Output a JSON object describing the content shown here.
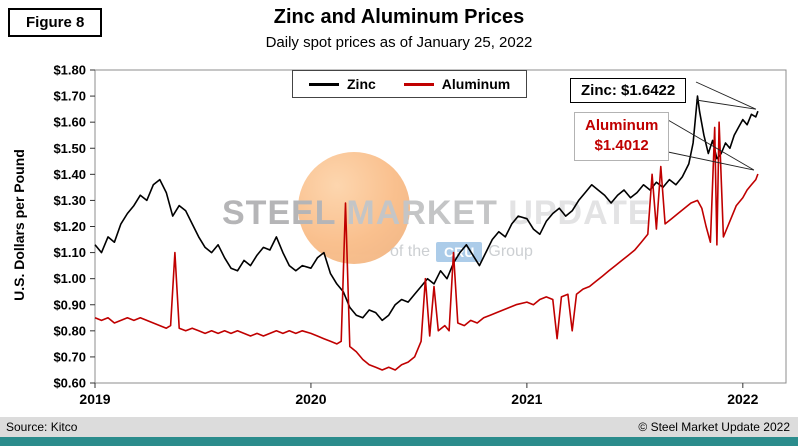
{
  "figure_label": "Figure 8",
  "title": "Zinc and Aluminum Prices",
  "subtitle": "Daily spot prices as of January 25, 2022",
  "y_axis_label": "U.S. Dollars per Pound",
  "annotations": {
    "zinc": "Zinc: $1.6422",
    "aluminum_line1": "Aluminum",
    "aluminum_line2": "$1.4012"
  },
  "watermark": {
    "word1": "STEEL",
    "word2": "MARKET",
    "word3": "UPDATE",
    "line2_prefix": "of the",
    "line2_badge": "CRU",
    "line2_suffix": "Group"
  },
  "footer": {
    "source": "Source: Kitco",
    "copyright": "© Steel Market Update 2022"
  },
  "colors": {
    "zinc_line": "#000000",
    "aluminum_line": "#c00000",
    "teal_bar": "#2b8c8c",
    "watermark_orange": "#f5821f",
    "cru_blue": "#5b9bd5",
    "footer_strip": "#dcdcdc"
  },
  "chart_data": {
    "type": "line",
    "title": "Zinc and Aluminum Prices",
    "subtitle": "Daily spot prices as of January 25, 2022",
    "xlabel": "",
    "ylabel": "U.S. Dollars per Pound",
    "xlim": [
      2019.0,
      2022.2
    ],
    "ylim": [
      0.6,
      1.8
    ],
    "grid": false,
    "legend_position": "top-center",
    "x_ticks": [
      {
        "label": "2019",
        "value": 2019
      },
      {
        "label": "2020",
        "value": 2020
      },
      {
        "label": "2021",
        "value": 2021
      },
      {
        "label": "2022",
        "value": 2022
      }
    ],
    "y_ticks": [
      {
        "label": "$0.60",
        "value": 0.6
      },
      {
        "label": "$0.70",
        "value": 0.7
      },
      {
        "label": "$0.80",
        "value": 0.8
      },
      {
        "label": "$0.90",
        "value": 0.9
      },
      {
        "label": "$1.00",
        "value": 1.0
      },
      {
        "label": "$1.10",
        "value": 1.1
      },
      {
        "label": "$1.20",
        "value": 1.2
      },
      {
        "label": "$1.30",
        "value": 1.3
      },
      {
        "label": "$1.40",
        "value": 1.4
      },
      {
        "label": "$1.50",
        "value": 1.5
      },
      {
        "label": "$1.60",
        "value": 1.6
      },
      {
        "label": "$1.70",
        "value": 1.7
      },
      {
        "label": "$1.80",
        "value": 1.8
      }
    ],
    "series": [
      {
        "name": "Zinc",
        "color": "#000000",
        "final_value": 1.6422,
        "points": [
          [
            2019.0,
            1.13
          ],
          [
            2019.03,
            1.1
          ],
          [
            2019.06,
            1.16
          ],
          [
            2019.09,
            1.14
          ],
          [
            2019.12,
            1.21
          ],
          [
            2019.15,
            1.25
          ],
          [
            2019.18,
            1.28
          ],
          [
            2019.21,
            1.32
          ],
          [
            2019.24,
            1.3
          ],
          [
            2019.27,
            1.36
          ],
          [
            2019.3,
            1.38
          ],
          [
            2019.33,
            1.33
          ],
          [
            2019.36,
            1.24
          ],
          [
            2019.39,
            1.28
          ],
          [
            2019.42,
            1.26
          ],
          [
            2019.45,
            1.21
          ],
          [
            2019.48,
            1.16
          ],
          [
            2019.51,
            1.12
          ],
          [
            2019.54,
            1.1
          ],
          [
            2019.57,
            1.13
          ],
          [
            2019.6,
            1.08
          ],
          [
            2019.63,
            1.04
          ],
          [
            2019.66,
            1.03
          ],
          [
            2019.69,
            1.07
          ],
          [
            2019.72,
            1.05
          ],
          [
            2019.75,
            1.09
          ],
          [
            2019.78,
            1.12
          ],
          [
            2019.81,
            1.11
          ],
          [
            2019.84,
            1.16
          ],
          [
            2019.87,
            1.1
          ],
          [
            2019.9,
            1.05
          ],
          [
            2019.93,
            1.03
          ],
          [
            2019.96,
            1.05
          ],
          [
            2020.0,
            1.04
          ],
          [
            2020.03,
            1.08
          ],
          [
            2020.06,
            1.1
          ],
          [
            2020.09,
            1.02
          ],
          [
            2020.12,
            0.98
          ],
          [
            2020.15,
            0.95
          ],
          [
            2020.18,
            0.89
          ],
          [
            2020.21,
            0.86
          ],
          [
            2020.24,
            0.85
          ],
          [
            2020.27,
            0.88
          ],
          [
            2020.3,
            0.87
          ],
          [
            2020.33,
            0.84
          ],
          [
            2020.36,
            0.86
          ],
          [
            2020.39,
            0.9
          ],
          [
            2020.42,
            0.92
          ],
          [
            2020.45,
            0.91
          ],
          [
            2020.48,
            0.94
          ],
          [
            2020.51,
            0.97
          ],
          [
            2020.54,
            1.0
          ],
          [
            2020.57,
            0.98
          ],
          [
            2020.6,
            1.03
          ],
          [
            2020.63,
            1.0
          ],
          [
            2020.66,
            1.06
          ],
          [
            2020.69,
            1.1
          ],
          [
            2020.72,
            1.13
          ],
          [
            2020.75,
            1.09
          ],
          [
            2020.78,
            1.05
          ],
          [
            2020.81,
            1.1
          ],
          [
            2020.84,
            1.15
          ],
          [
            2020.87,
            1.18
          ],
          [
            2020.9,
            1.16
          ],
          [
            2020.93,
            1.21
          ],
          [
            2020.96,
            1.24
          ],
          [
            2021.0,
            1.23
          ],
          [
            2021.03,
            1.19
          ],
          [
            2021.06,
            1.17
          ],
          [
            2021.09,
            1.22
          ],
          [
            2021.12,
            1.25
          ],
          [
            2021.15,
            1.27
          ],
          [
            2021.18,
            1.24
          ],
          [
            2021.21,
            1.26
          ],
          [
            2021.24,
            1.3
          ],
          [
            2021.27,
            1.33
          ],
          [
            2021.3,
            1.36
          ],
          [
            2021.33,
            1.34
          ],
          [
            2021.36,
            1.32
          ],
          [
            2021.39,
            1.29
          ],
          [
            2021.42,
            1.32
          ],
          [
            2021.45,
            1.34
          ],
          [
            2021.48,
            1.31
          ],
          [
            2021.51,
            1.33
          ],
          [
            2021.54,
            1.36
          ],
          [
            2021.57,
            1.34
          ],
          [
            2021.6,
            1.37
          ],
          [
            2021.63,
            1.35
          ],
          [
            2021.66,
            1.38
          ],
          [
            2021.69,
            1.36
          ],
          [
            2021.72,
            1.39
          ],
          [
            2021.75,
            1.44
          ],
          [
            2021.77,
            1.52
          ],
          [
            2021.79,
            1.7
          ],
          [
            2021.8,
            1.64
          ],
          [
            2021.82,
            1.55
          ],
          [
            2021.84,
            1.48
          ],
          [
            2021.86,
            1.53
          ],
          [
            2021.88,
            1.46
          ],
          [
            2021.9,
            1.48
          ],
          [
            2021.92,
            1.52
          ],
          [
            2021.94,
            1.5
          ],
          [
            2021.96,
            1.55
          ],
          [
            2021.98,
            1.58
          ],
          [
            2022.0,
            1.61
          ],
          [
            2022.02,
            1.59
          ],
          [
            2022.04,
            1.63
          ],
          [
            2022.06,
            1.62
          ],
          [
            2022.07,
            1.6422
          ]
        ]
      },
      {
        "name": "Aluminum",
        "color": "#c00000",
        "final_value": 1.4012,
        "points": [
          [
            2019.0,
            0.85
          ],
          [
            2019.03,
            0.84
          ],
          [
            2019.06,
            0.85
          ],
          [
            2019.09,
            0.83
          ],
          [
            2019.12,
            0.84
          ],
          [
            2019.15,
            0.85
          ],
          [
            2019.18,
            0.84
          ],
          [
            2019.21,
            0.85
          ],
          [
            2019.24,
            0.84
          ],
          [
            2019.27,
            0.83
          ],
          [
            2019.3,
            0.82
          ],
          [
            2019.33,
            0.81
          ],
          [
            2019.35,
            0.82
          ],
          [
            2019.37,
            1.1
          ],
          [
            2019.39,
            0.81
          ],
          [
            2019.42,
            0.8
          ],
          [
            2019.45,
            0.81
          ],
          [
            2019.48,
            0.8
          ],
          [
            2019.51,
            0.79
          ],
          [
            2019.54,
            0.8
          ],
          [
            2019.57,
            0.79
          ],
          [
            2019.6,
            0.8
          ],
          [
            2019.63,
            0.79
          ],
          [
            2019.66,
            0.8
          ],
          [
            2019.69,
            0.79
          ],
          [
            2019.72,
            0.78
          ],
          [
            2019.75,
            0.79
          ],
          [
            2019.78,
            0.78
          ],
          [
            2019.81,
            0.79
          ],
          [
            2019.84,
            0.8
          ],
          [
            2019.87,
            0.79
          ],
          [
            2019.9,
            0.8
          ],
          [
            2019.93,
            0.79
          ],
          [
            2019.96,
            0.8
          ],
          [
            2020.0,
            0.79
          ],
          [
            2020.03,
            0.78
          ],
          [
            2020.06,
            0.77
          ],
          [
            2020.09,
            0.76
          ],
          [
            2020.12,
            0.75
          ],
          [
            2020.14,
            0.76
          ],
          [
            2020.16,
            1.29
          ],
          [
            2020.18,
            0.74
          ],
          [
            2020.21,
            0.72
          ],
          [
            2020.24,
            0.69
          ],
          [
            2020.27,
            0.67
          ],
          [
            2020.3,
            0.66
          ],
          [
            2020.33,
            0.65
          ],
          [
            2020.36,
            0.66
          ],
          [
            2020.39,
            0.65
          ],
          [
            2020.42,
            0.67
          ],
          [
            2020.45,
            0.68
          ],
          [
            2020.48,
            0.7
          ],
          [
            2020.51,
            0.76
          ],
          [
            2020.53,
            1.0
          ],
          [
            2020.55,
            0.78
          ],
          [
            2020.57,
            0.97
          ],
          [
            2020.59,
            0.8
          ],
          [
            2020.62,
            0.82
          ],
          [
            2020.64,
            0.8
          ],
          [
            2020.66,
            1.1
          ],
          [
            2020.68,
            0.83
          ],
          [
            2020.71,
            0.82
          ],
          [
            2020.74,
            0.84
          ],
          [
            2020.77,
            0.83
          ],
          [
            2020.8,
            0.85
          ],
          [
            2020.83,
            0.86
          ],
          [
            2020.86,
            0.87
          ],
          [
            2020.89,
            0.88
          ],
          [
            2020.92,
            0.89
          ],
          [
            2020.95,
            0.9
          ],
          [
            2021.0,
            0.91
          ],
          [
            2021.03,
            0.9
          ],
          [
            2021.06,
            0.92
          ],
          [
            2021.09,
            0.93
          ],
          [
            2021.12,
            0.92
          ],
          [
            2021.14,
            0.77
          ],
          [
            2021.16,
            0.93
          ],
          [
            2021.19,
            0.94
          ],
          [
            2021.21,
            0.8
          ],
          [
            2021.23,
            0.94
          ],
          [
            2021.26,
            0.96
          ],
          [
            2021.29,
            0.97
          ],
          [
            2021.32,
            0.99
          ],
          [
            2021.35,
            1.01
          ],
          [
            2021.38,
            1.03
          ],
          [
            2021.41,
            1.05
          ],
          [
            2021.44,
            1.07
          ],
          [
            2021.47,
            1.09
          ],
          [
            2021.5,
            1.11
          ],
          [
            2021.53,
            1.14
          ],
          [
            2021.56,
            1.17
          ],
          [
            2021.58,
            1.4
          ],
          [
            2021.6,
            1.19
          ],
          [
            2021.62,
            1.43
          ],
          [
            2021.64,
            1.21
          ],
          [
            2021.67,
            1.23
          ],
          [
            2021.7,
            1.25
          ],
          [
            2021.73,
            1.27
          ],
          [
            2021.76,
            1.29
          ],
          [
            2021.79,
            1.3
          ],
          [
            2021.81,
            1.27
          ],
          [
            2021.83,
            1.2
          ],
          [
            2021.85,
            1.14
          ],
          [
            2021.87,
            1.58
          ],
          [
            2021.88,
            1.13
          ],
          [
            2021.89,
            1.6
          ],
          [
            2021.91,
            1.16
          ],
          [
            2021.93,
            1.2
          ],
          [
            2021.95,
            1.24
          ],
          [
            2021.97,
            1.28
          ],
          [
            2022.0,
            1.31
          ],
          [
            2022.02,
            1.34
          ],
          [
            2022.04,
            1.36
          ],
          [
            2022.06,
            1.38
          ],
          [
            2022.07,
            1.4012
          ]
        ]
      }
    ]
  }
}
